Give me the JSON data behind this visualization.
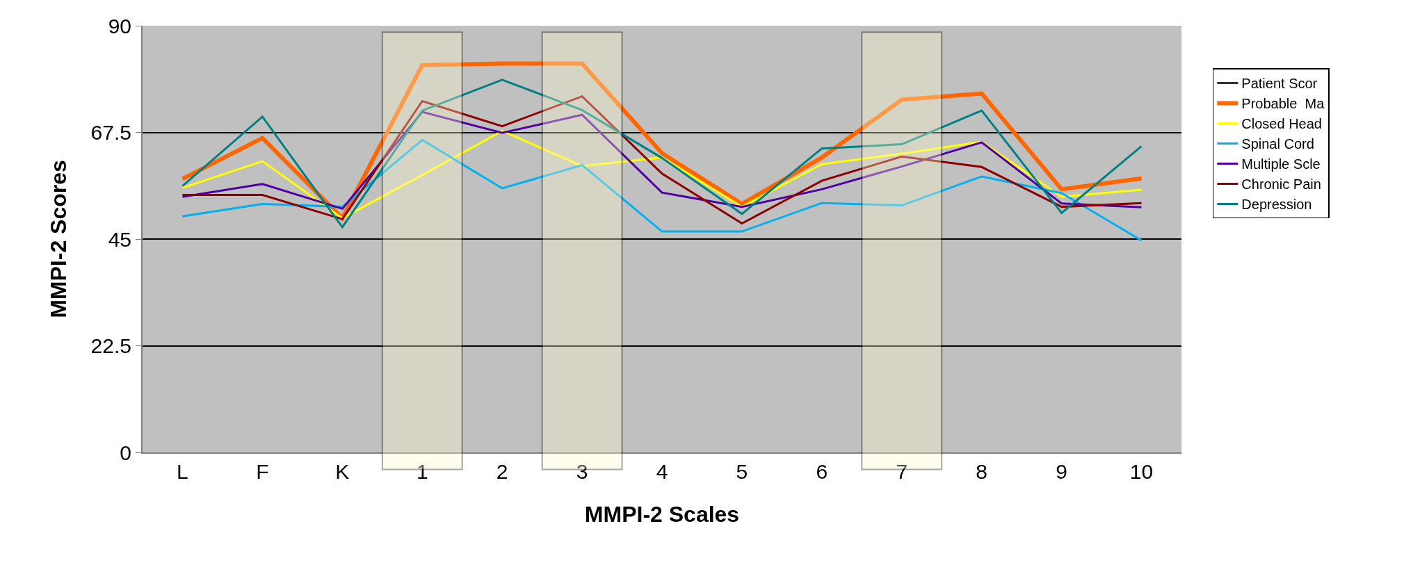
{
  "chart_data": {
    "type": "line",
    "xlabel": "MMPI-2 Scales",
    "ylabel": "MMPI-2 Scores",
    "categories": [
      "L",
      "F",
      "K",
      "1",
      "2",
      "3",
      "4",
      "5",
      "6",
      "7",
      "8",
      "9",
      "10"
    ],
    "series": [
      {
        "name": "Patient Scor",
        "color": "#333333",
        "values": [
          null,
          null,
          null,
          null,
          null,
          null,
          null,
          null,
          null,
          null,
          null,
          null,
          null
        ]
      },
      {
        "name": "Probable  Ma",
        "color": "#ff6600",
        "values": [
          57.7,
          66.3,
          49.4,
          81.7,
          82.0,
          82.0,
          63.1,
          52.4,
          62.2,
          74.4,
          75.7,
          55.5,
          57.8
        ]
      },
      {
        "name": "Closed Head",
        "color": "#ffff00",
        "values": [
          55.8,
          61.4,
          49.4,
          58.5,
          67.8,
          60.4,
          62.2,
          51.8,
          60.8,
          63.0,
          65.5,
          53.9,
          55.4
        ]
      },
      {
        "name": "Spinal Cord",
        "color": "#00b0f0",
        "values": [
          49.8,
          52.4,
          51.8,
          65.9,
          55.7,
          60.6,
          46.6,
          46.6,
          52.6,
          52.1,
          58.2,
          54.7,
          44.7
        ]
      },
      {
        "name": "Multiple Scle",
        "color": "#5000a0",
        "values": [
          53.9,
          56.6,
          51.4,
          71.8,
          67.4,
          71.2,
          54.8,
          51.8,
          55.5,
          60.3,
          65.4,
          52.5,
          51.7
        ]
      },
      {
        "name": "Chronic Pain",
        "color": "#8b0000",
        "values": [
          54.3,
          54.3,
          49.2,
          74.1,
          68.8,
          75.1,
          58.8,
          48.3,
          57.3,
          62.4,
          60.2,
          51.8,
          52.6
        ]
      },
      {
        "name": "Depression",
        "color": "#008080",
        "values": [
          56.2,
          70.8,
          47.5,
          72.1,
          78.6,
          72.2,
          62.1,
          50.3,
          64.1,
          65.0,
          72.1,
          50.5,
          64.6
        ]
      }
    ],
    "bands": [
      {
        "axis": "x",
        "from": "1",
        "to": "1",
        "color": "#fffbd0"
      },
      {
        "axis": "x",
        "from": "3",
        "to": "3",
        "color": "#fffbd0"
      },
      {
        "axis": "x",
        "from": "7",
        "to": "7",
        "color": "#fffbd0"
      }
    ],
    "ylim": [
      0,
      90
    ],
    "yticks": [
      0,
      22.5,
      45,
      67.5,
      90
    ],
    "grid": "y",
    "legend": "right",
    "marker": "none",
    "line_style": "solid"
  }
}
